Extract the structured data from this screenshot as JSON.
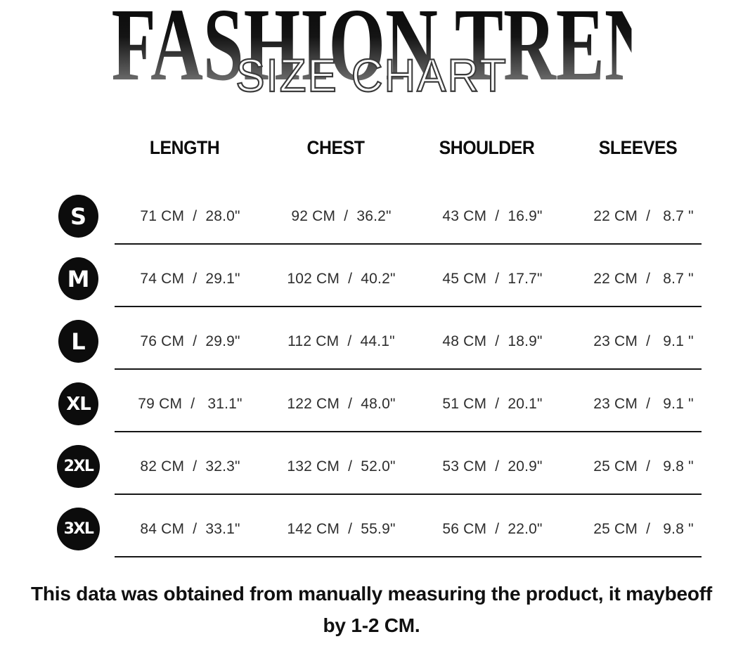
{
  "header": {
    "title": "FASHION TRENDS",
    "subtitle": "SIZE CHART"
  },
  "table": {
    "columns": [
      "LENGTH",
      "CHEST",
      "SHOULDER",
      "SLEEVES"
    ],
    "rows": [
      {
        "size": "S",
        "length": "71 CM  /  28.0\"",
        "chest": "92 CM  /  36.2\"",
        "shoulder": "43 CM  /  16.9\"",
        "sleeves": "22 CM  /   8.7 \""
      },
      {
        "size": "M",
        "length": "74 CM  /  29.1\"",
        "chest": "102 CM  /  40.2\"",
        "shoulder": "45 CM  /  17.7\"",
        "sleeves": "22 CM  /   8.7 \""
      },
      {
        "size": "L",
        "length": "76 CM  /  29.9\"",
        "chest": "112 CM  /  44.1\"",
        "shoulder": "48 CM  /  18.9\"",
        "sleeves": "23 CM  /   9.1 \""
      },
      {
        "size": "XL",
        "length": "79 CM  /   31.1\"",
        "chest": "122 CM  /  48.0\"",
        "shoulder": "51 CM  /  20.1\"",
        "sleeves": "23 CM  /   9.1 \""
      },
      {
        "size": "2XL",
        "length": "82 CM  /  32.3\"",
        "chest": "132 CM  /  52.0\"",
        "shoulder": "53 CM  /  20.9\"",
        "sleeves": "25 CM  /   9.8 \""
      },
      {
        "size": "3XL",
        "length": "84 CM  /  33.1\"",
        "chest": "142 CM  /  55.9\"",
        "shoulder": "56 CM  /  22.0\"",
        "sleeves": "25 CM  /   9.8 \""
      }
    ]
  },
  "footer": {
    "line1": "This data was obtained from manually measuring the product, it maybeoff",
    "line2": "by 1-2 CM."
  },
  "colors": {
    "badge_bg": "#0c0c0c",
    "badge_text": "#ffffff",
    "divider": "#161616",
    "cell_text": "#2e2e2e",
    "title_gradient_top": "#060606",
    "title_gradient_bottom": "#8d8d8d"
  }
}
